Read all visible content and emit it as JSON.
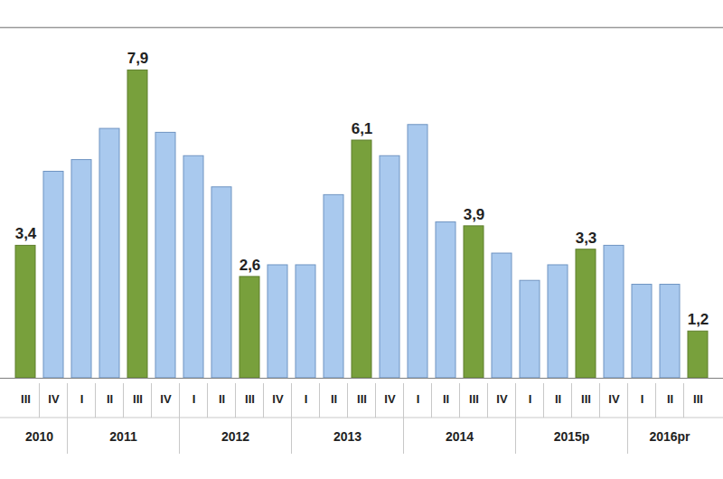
{
  "chart_data": {
    "type": "bar",
    "categories": [
      "III",
      "IV",
      "I",
      "II",
      "III",
      "IV",
      "I",
      "II",
      "III",
      "IV",
      "I",
      "II",
      "III",
      "IV",
      "I",
      "II",
      "III",
      "IV",
      "I",
      "II",
      "III",
      "IV",
      "I",
      "II",
      "III"
    ],
    "x_groups": [
      "2010",
      "2010",
      "2011",
      "2011",
      "2011",
      "2011",
      "2012",
      "2012",
      "2012",
      "2012",
      "2013",
      "2013",
      "2013",
      "2013",
      "2014",
      "2014",
      "2014",
      "2014",
      "2015p",
      "2015p",
      "2015p",
      "2015p",
      "2016pr",
      "2016pr",
      "2016pr"
    ],
    "values": [
      3.4,
      5.3,
      5.6,
      6.4,
      7.9,
      6.3,
      5.7,
      4.9,
      2.6,
      2.9,
      2.9,
      4.7,
      6.1,
      5.7,
      6.5,
      4.0,
      3.9,
      3.2,
      2.5,
      2.9,
      3.3,
      3.4,
      2.4,
      2.4,
      1.2
    ],
    "value_labels": [
      "3,4",
      null,
      null,
      null,
      "7,9",
      null,
      null,
      null,
      "2,6",
      null,
      null,
      null,
      "6,1",
      null,
      null,
      null,
      "3,9",
      null,
      null,
      null,
      "3,3",
      null,
      null,
      null,
      "1,2"
    ],
    "colors": [
      "#78a03c",
      "#a9c9ee",
      "#a9c9ee",
      "#a9c9ee",
      "#78a03c",
      "#a9c9ee",
      "#a9c9ee",
      "#a9c9ee",
      "#78a03c",
      "#a9c9ee",
      "#a9c9ee",
      "#a9c9ee",
      "#78a03c",
      "#a9c9ee",
      "#a9c9ee",
      "#a9c9ee",
      "#78a03c",
      "#a9c9ee",
      "#a9c9ee",
      "#a9c9ee",
      "#78a03c",
      "#a9c9ee",
      "#a9c9ee",
      "#a9c9ee",
      "#78a03c"
    ],
    "ylim": [
      0,
      9
    ],
    "grid": false,
    "data_labels": true,
    "tick_labels": "x"
  }
}
